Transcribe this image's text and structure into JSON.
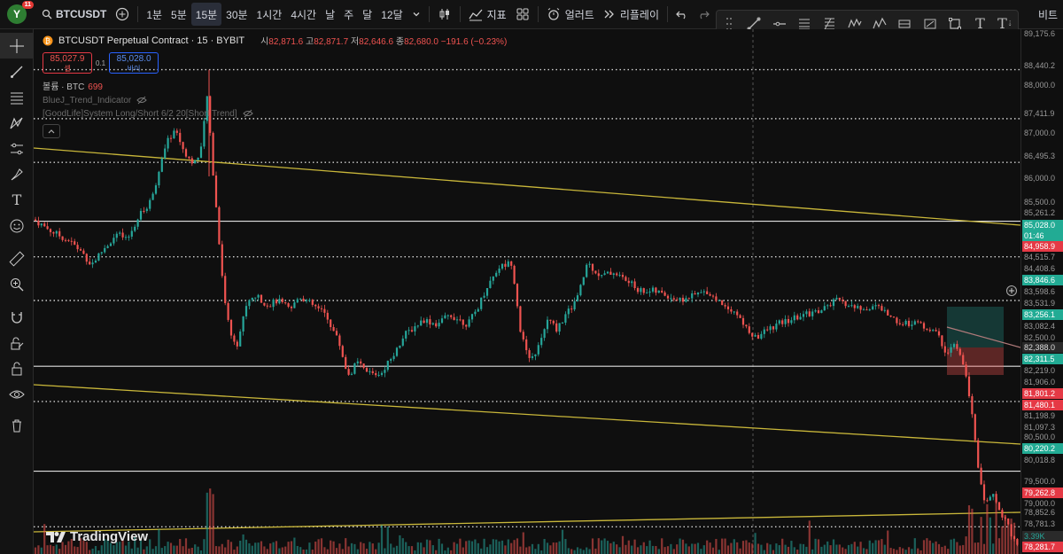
{
  "toolbar": {
    "avatar_letter": "Y",
    "avatar_badge": "11",
    "symbol": "BTCUSDT",
    "timeframes": [
      "1분",
      "5분",
      "15분",
      "30분",
      "1시간",
      "4시간",
      "날",
      "주",
      "달",
      "12달"
    ],
    "active_timeframe": "15분",
    "indicators_label": "지표",
    "alert_label": "얼러트",
    "replay_label": "리플레이",
    "right_label": "비트"
  },
  "legend": {
    "title": "BTCUSDT Perpetual Contract · 15 · BYBIT",
    "ohlc": [
      {
        "label": "시",
        "value": "82,871.6"
      },
      {
        "label": "고",
        "value": "82,871.7"
      },
      {
        "label": "저",
        "value": "82,646.6"
      },
      {
        "label": "종",
        "value": "82,680.0"
      }
    ],
    "change": "−191.6 (−0.23%)",
    "sell_price": "85,027.9",
    "sell_label": "셀",
    "spread": "0.1",
    "buy_price": "85,028.0",
    "buy_label": "바이",
    "volume_label": "볼륨 · BTC",
    "volume_value": "699",
    "indicator1": "BlueJ_Trend_Indicator",
    "indicator2": "[GoodLife]System Long/Short 6/2 20[Short Trend]"
  },
  "logo_text": "TradingView",
  "axis": {
    "ticks": [
      "89,175.6",
      "88,440.2",
      "88,000.0",
      "87,411.9",
      "87,000.0",
      "86,495.3",
      "86,000.0",
      "85,500.0",
      "85,261.2",
      "84,515.7",
      "84,408.6",
      "83,598.6",
      "83,531.9",
      "83,082.4",
      "82,500.0",
      "82,219.0",
      "81,906.0",
      "81,198.9",
      "81,097.3",
      "80,500.0",
      "80,018.8",
      "79,500.0",
      "79,000.0",
      "78,852.6",
      "78,781.3"
    ],
    "labels": {
      "current": "85,028.0",
      "countdown": "01:46",
      "l84958": "84,958.9",
      "l83846": "83,846.6",
      "l83256": "83,256.1",
      "l82388": "82,388.0",
      "l82311": "82,311.5",
      "l81801": "81,801.2",
      "l81480": "81,480.1",
      "l80220": "80,220.2",
      "l79262": "79,262.8",
      "vol": "3.39K",
      "last": "78,281.7"
    }
  },
  "chart_data": {
    "type": "candlestick",
    "symbol": "BTCUSDT",
    "exchange": "BYBIT",
    "interval": "15",
    "ylim": [
      78281.7,
      89175.6
    ],
    "horizontal_levels": [
      88440.2,
      87411.9,
      86495.3,
      85261.2,
      84515.7,
      83598.6,
      82219.0,
      81480.1,
      80018.8,
      78852.6
    ]
  },
  "colors": {
    "up": "#26a69a",
    "down": "#ef5350",
    "trendline": "#c9b73a",
    "level": "#e0e0e0"
  }
}
